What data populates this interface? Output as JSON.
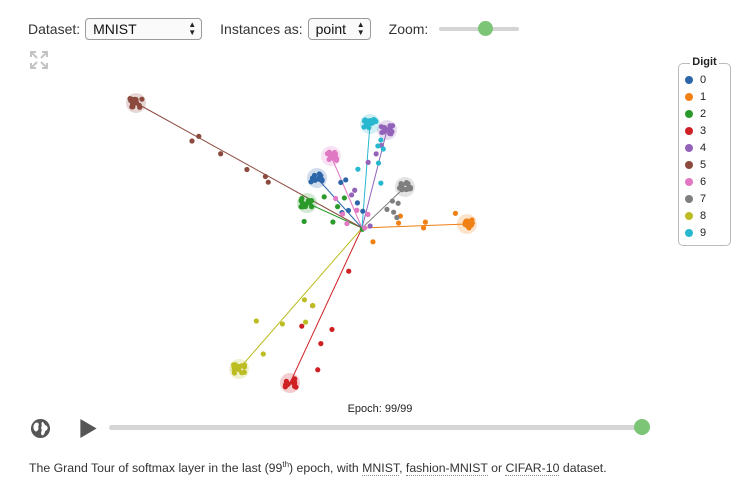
{
  "controls": {
    "dataset_label": "Dataset:",
    "dataset_value": "MNIST",
    "instances_label": "Instances as:",
    "instances_value": "point",
    "zoom_label": "Zoom:",
    "zoom_level": 0.6
  },
  "legend": {
    "title": "Digit",
    "items": [
      {
        "label": "0",
        "color": "#2c66a8"
      },
      {
        "label": "1",
        "color": "#f07f14"
      },
      {
        "label": "2",
        "color": "#2b9a2b"
      },
      {
        "label": "3",
        "color": "#cf2024"
      },
      {
        "label": "4",
        "color": "#9263b9"
      },
      {
        "label": "5",
        "color": "#8c4a3f"
      },
      {
        "label": "6",
        "color": "#e078c4"
      },
      {
        "label": "7",
        "color": "#7f7f7f"
      },
      {
        "label": "8",
        "color": "#bcbd22"
      },
      {
        "label": "9",
        "color": "#27b8cf"
      }
    ]
  },
  "playback": {
    "epoch_label": "Epoch: 99/99",
    "epoch": 99,
    "epoch_max": 99
  },
  "caption": {
    "before": "The Grand Tour of softmax layer in the last (99",
    "sup": "th",
    "middle": ") epoch, with ",
    "link1": "MNIST",
    "sep1": ", ",
    "link2": "fashion-MNIST",
    "sep2": " or ",
    "link3": "CIFAR-10",
    "after": " dataset."
  },
  "icons": {
    "fullscreen": "expand-icon",
    "globe": "globe-icon",
    "play": "play-icon"
  }
}
